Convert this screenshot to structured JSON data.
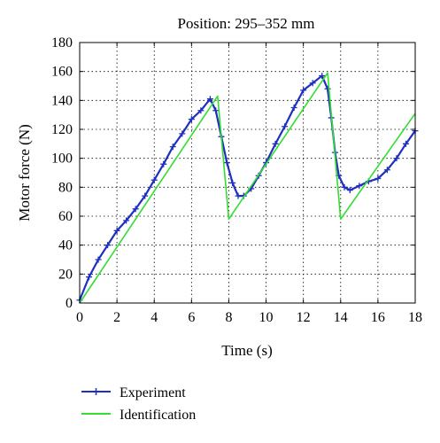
{
  "chart_data": {
    "type": "line",
    "title": "Position: 295–352 mm",
    "xlabel": "Time (s)",
    "ylabel": "Motor force (N)",
    "xlim": [
      0,
      18
    ],
    "ylim": [
      0,
      180
    ],
    "xticks": [
      "0",
      "2",
      "4",
      "6",
      "8",
      "10",
      "12",
      "14",
      "16",
      "18"
    ],
    "yticks": [
      "0",
      "20",
      "40",
      "60",
      "80",
      "100",
      "120",
      "140",
      "160",
      "180"
    ],
    "grid": true,
    "legend_position": "bottom-left, below plot",
    "series": [
      {
        "name": "Experiment",
        "color": "#1f2fbf",
        "marker": "plus",
        "x": [
          0,
          0.5,
          1,
          1.5,
          2,
          2.5,
          3,
          3.5,
          4,
          4.5,
          5,
          5.5,
          6,
          6.5,
          7,
          7.3,
          7.6,
          7.9,
          8.2,
          8.5,
          8.8,
          9.2,
          9.6,
          10,
          10.5,
          11,
          11.5,
          12,
          12.5,
          13,
          13.3,
          13.5,
          13.7,
          13.9,
          14.2,
          14.5,
          15,
          15.5,
          16,
          16.5,
          17,
          17.5,
          18
        ],
        "y": [
          2,
          18,
          30,
          40,
          50,
          57,
          65,
          74,
          85,
          96,
          108,
          117,
          127,
          133,
          141,
          133,
          115,
          97,
          83,
          74,
          74,
          79,
          88,
          97,
          110,
          122,
          135,
          147,
          152,
          157,
          148,
          128,
          104,
          88,
          80,
          78,
          81,
          84,
          86,
          92,
          100,
          110,
          119
        ]
      },
      {
        "name": "Identification",
        "color": "#33dd33",
        "x": [
          0,
          7.4,
          8.0,
          13.3,
          14.0,
          18
        ],
        "y": [
          0,
          143,
          58,
          159,
          58,
          131
        ]
      }
    ]
  }
}
